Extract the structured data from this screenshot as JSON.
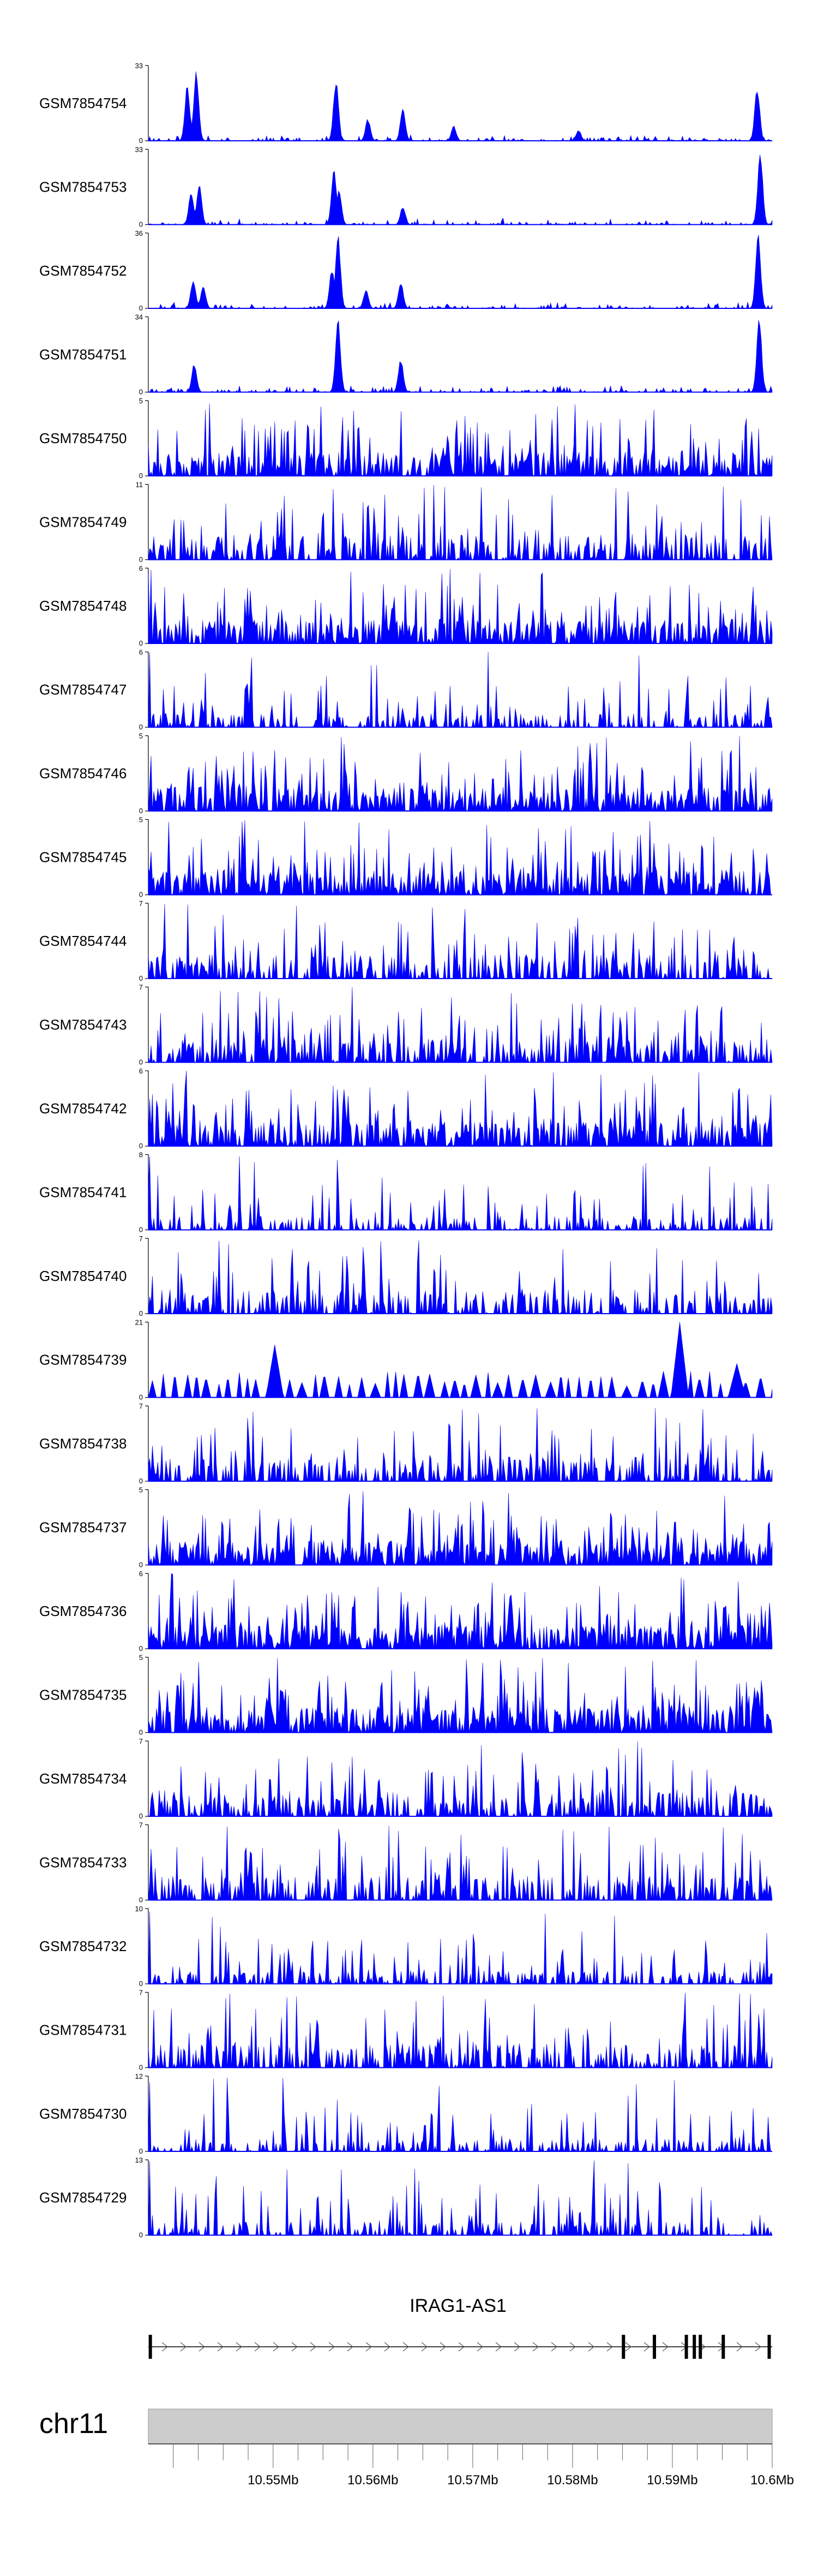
{
  "colors": {
    "signal": "#0000ff",
    "axis": "#000000",
    "ideogram": "#cccccc"
  },
  "chart_data": {
    "type": "area",
    "chromosome": "chr11",
    "xlim": [
      10.5375,
      10.6
    ],
    "x_ticks": [
      10.55,
      10.56,
      10.57,
      10.58,
      10.59,
      10.6
    ],
    "x_tick_labels": [
      "10.55Mb",
      "10.56Mb",
      "10.57Mb",
      "10.58Mb",
      "10.59Mb",
      "10.6Mb"
    ],
    "gene": {
      "name": "IRAG1-AS1",
      "strand": "+",
      "start": 10.5375,
      "end": 10.6,
      "exons": [
        10.5377,
        10.5851,
        10.5882,
        10.5914,
        10.5922,
        10.5928,
        10.5951,
        10.5997
      ]
    },
    "tracks": [
      {
        "name": "GSM7854754",
        "ymax": 33,
        "ymax_label": "33",
        "profile": "sharp",
        "peaks": [
          [
            10.5414,
            0.75
          ],
          [
            10.5423,
            1.0
          ],
          [
            10.5563,
            0.85
          ],
          [
            10.5595,
            0.3
          ],
          [
            10.563,
            0.45
          ],
          [
            10.5681,
            0.2
          ],
          [
            10.5806,
            0.15
          ],
          [
            10.5985,
            0.75
          ]
        ]
      },
      {
        "name": "GSM7854753",
        "ymax": 33,
        "ymax_label": "33",
        "profile": "sharp",
        "peaks": [
          [
            10.5418,
            0.45
          ],
          [
            10.5426,
            0.55
          ],
          [
            10.5561,
            0.8
          ],
          [
            10.5566,
            0.5
          ],
          [
            10.563,
            0.25
          ],
          [
            10.5988,
            1.0
          ]
        ]
      },
      {
        "name": "GSM7854752",
        "ymax": 36,
        "ymax_label": "36",
        "profile": "sharp",
        "peaks": [
          [
            10.542,
            0.4
          ],
          [
            10.543,
            0.3
          ],
          [
            10.5559,
            0.55
          ],
          [
            10.5565,
            1.0
          ],
          [
            10.5593,
            0.25
          ],
          [
            10.5628,
            0.35
          ],
          [
            10.5986,
            1.0
          ]
        ]
      },
      {
        "name": "GSM7854751",
        "ymax": 34,
        "ymax_label": "34",
        "profile": "sharp",
        "peaks": [
          [
            10.5421,
            0.4
          ],
          [
            10.5565,
            1.0
          ],
          [
            10.5628,
            0.45
          ],
          [
            10.5987,
            1.0
          ]
        ]
      },
      {
        "name": "GSM7854750",
        "ymax": 5,
        "ymax_label": "5",
        "profile": "dense"
      },
      {
        "name": "GSM7854749",
        "ymax": 11,
        "ymax_label": "11",
        "profile": "spiky"
      },
      {
        "name": "GSM7854748",
        "ymax": 6,
        "ymax_label": "6",
        "profile": "dense"
      },
      {
        "name": "GSM7854747",
        "ymax": 6,
        "ymax_label": "6",
        "profile": "sparse"
      },
      {
        "name": "GSM7854746",
        "ymax": 5,
        "ymax_label": "5",
        "profile": "dense"
      },
      {
        "name": "GSM7854745",
        "ymax": 5,
        "ymax_label": "5",
        "profile": "dense"
      },
      {
        "name": "GSM7854744",
        "ymax": 7,
        "ymax_label": "7",
        "profile": "spiky"
      },
      {
        "name": "GSM7854743",
        "ymax": 7,
        "ymax_label": "7",
        "profile": "spiky"
      },
      {
        "name": "GSM7854742",
        "ymax": 6,
        "ymax_label": "6",
        "profile": "dense"
      },
      {
        "name": "GSM7854741",
        "ymax": 8,
        "ymax_label": "8",
        "profile": "sparse"
      },
      {
        "name": "GSM7854740",
        "ymax": 7,
        "ymax_label": "7",
        "profile": "spiky"
      },
      {
        "name": "GSM7854739",
        "ymax": 21,
        "ymax_label": "21",
        "profile": "triangles"
      },
      {
        "name": "GSM7854738",
        "ymax": 7,
        "ymax_label": "7",
        "profile": "spiky"
      },
      {
        "name": "GSM7854737",
        "ymax": 5,
        "ymax_label": "5",
        "profile": "dense"
      },
      {
        "name": "GSM7854736",
        "ymax": 6,
        "ymax_label": "6",
        "profile": "dense"
      },
      {
        "name": "GSM7854735",
        "ymax": 5,
        "ymax_label": "5",
        "profile": "dense"
      },
      {
        "name": "GSM7854734",
        "ymax": 7,
        "ymax_label": "7",
        "profile": "spiky"
      },
      {
        "name": "GSM7854733",
        "ymax": 7,
        "ymax_label": "7",
        "profile": "spiky"
      },
      {
        "name": "GSM7854732",
        "ymax": 10,
        "ymax_label": "10",
        "profile": "sparse"
      },
      {
        "name": "GSM7854731",
        "ymax": 7,
        "ymax_label": "7",
        "profile": "spiky"
      },
      {
        "name": "GSM7854730",
        "ymax": 12,
        "ymax_label": "12",
        "profile": "sparse"
      },
      {
        "name": "GSM7854729",
        "ymax": 13,
        "ymax_label": "13",
        "profile": "sparse"
      }
    ]
  }
}
